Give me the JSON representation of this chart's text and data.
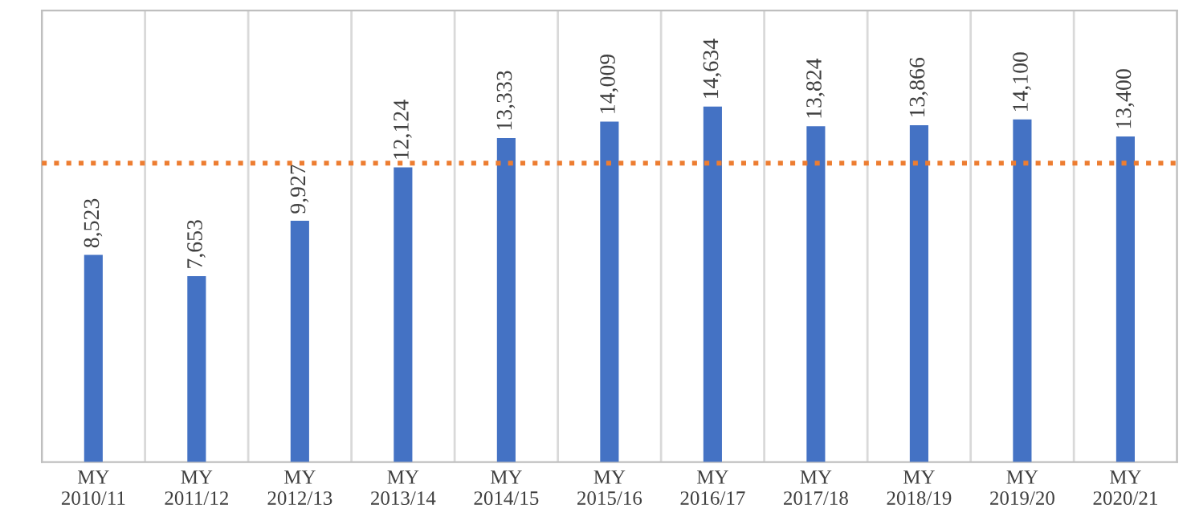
{
  "chart_data": {
    "type": "bar",
    "categories": [
      "MY\n2010/11",
      "MY\n2011/12",
      "MY\n2012/13",
      "MY\n2013/14",
      "MY\n2014/15",
      "MY\n2015/16",
      "MY\n2016/17",
      "MY\n2017/18",
      "MY\n2018/19",
      "MY\n2019/20",
      "MY\n2020/21"
    ],
    "values": [
      8523,
      7653,
      9927,
      12124,
      13333,
      14009,
      14634,
      13824,
      13866,
      14100,
      13400
    ],
    "value_labels": [
      "8,523",
      "7,653",
      "9,927",
      "12,124",
      "13,333",
      "14,009",
      "14,634",
      "13,824",
      "13,866",
      "14,100",
      "13,400"
    ],
    "color": "#4472c4",
    "ref_lines": [
      {
        "axis": "y",
        "value": 12300,
        "label": null,
        "color": "#ed7d31",
        "line_style": "dotted"
      }
    ],
    "grid": "x",
    "legend": false,
    "tick_labels": "x"
  }
}
